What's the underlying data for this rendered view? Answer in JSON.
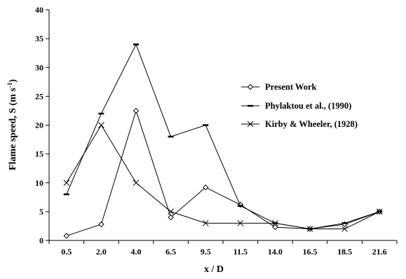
{
  "chart_data": {
    "type": "line",
    "categories": [
      "0.5",
      "2.0",
      "4.0",
      "6.5",
      "9.5",
      "11.5",
      "14.0",
      "16.5",
      "18.5",
      "21.6"
    ],
    "xlabel": "x / D",
    "ylabel_main": "Flame speed, S (m s",
    "ylabel_sup": "-1",
    "ylabel_close": ")",
    "ylim": [
      0,
      40
    ],
    "yticks": [
      "0",
      "5",
      "10",
      "15",
      "20",
      "25",
      "30",
      "35",
      "40"
    ],
    "grid": false,
    "legend_position": "right",
    "series": [
      {
        "name": "Present Work",
        "marker": "diamond",
        "values": [
          0.8,
          2.8,
          22.5,
          4.0,
          9.2,
          6.2,
          2.3,
          2.0,
          2.8,
          5.0
        ]
      },
      {
        "name": "Phylaktou et al., (1990)",
        "marker": "dash",
        "values": [
          8.0,
          22.0,
          34.0,
          18.0,
          20.0,
          6.0,
          3.0,
          2.0,
          3.0,
          5.0
        ]
      },
      {
        "name": "Kirby & Wheeler, (1928)",
        "marker": "x",
        "values": [
          10.0,
          20.0,
          10.0,
          5.0,
          3.0,
          3.0,
          3.0,
          2.0,
          2.0,
          5.0
        ]
      }
    ]
  }
}
